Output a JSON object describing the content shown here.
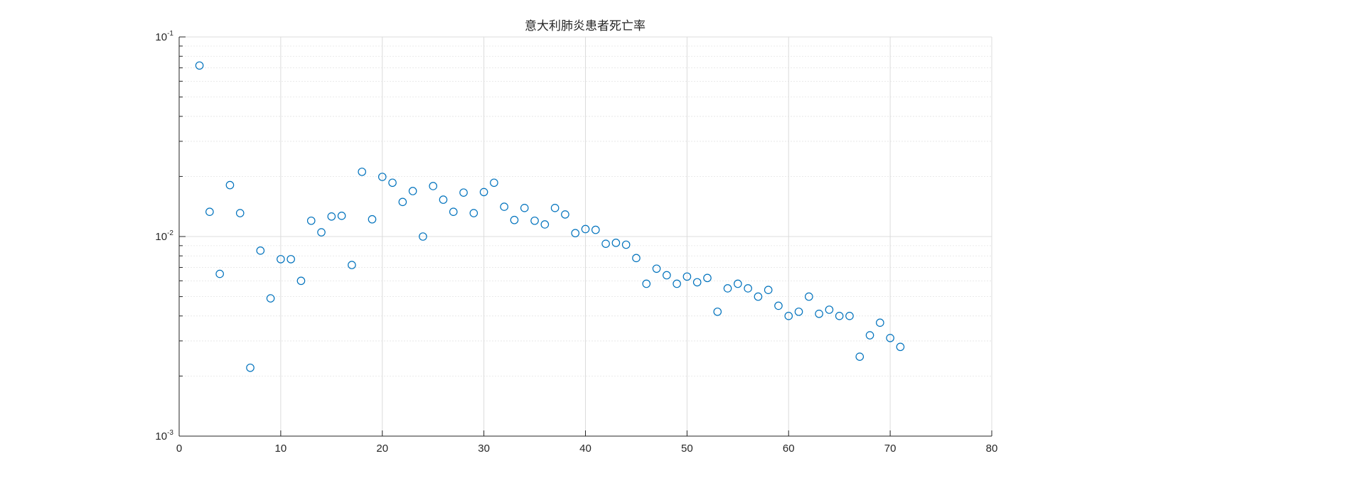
{
  "chart_data": {
    "type": "scatter",
    "title": "意大利肺炎患者死亡率",
    "xlabel": "",
    "ylabel": "",
    "xlim": [
      0,
      80
    ],
    "ylim": [
      0.001,
      0.1
    ],
    "yscale": "log",
    "grid": true,
    "minor_grid": true,
    "marker": "circle-open",
    "marker_color": "#0072BD",
    "x_ticks": [
      "0",
      "10",
      "20",
      "30",
      "40",
      "50",
      "60",
      "70",
      "80"
    ],
    "y_ticks": [
      {
        "base": "10",
        "exp": "-3",
        "value": 0.001
      },
      {
        "base": "10",
        "exp": "-2",
        "value": 0.01
      },
      {
        "base": "10",
        "exp": "-1",
        "value": 0.1
      }
    ],
    "series": [
      {
        "x": [
          2,
          3,
          4,
          5,
          6,
          7,
          8,
          9,
          10,
          11,
          12,
          13,
          14,
          15,
          16,
          17,
          18,
          19,
          20,
          21,
          22,
          23,
          24,
          25,
          26,
          27,
          28,
          29,
          30,
          31,
          32,
          33,
          34,
          35,
          36,
          37,
          38,
          39,
          40,
          41,
          42,
          43,
          44,
          45,
          46,
          47,
          48,
          49,
          50,
          51,
          52,
          53,
          54,
          55,
          56,
          57,
          58,
          59,
          60,
          61,
          62,
          63,
          64,
          65,
          66,
          67,
          68,
          69,
          70,
          71
        ],
        "y": [
          0.0719,
          0.0133,
          0.0065,
          0.0181,
          0.0131,
          0.0022,
          0.0085,
          0.0049,
          0.0077,
          0.0077,
          0.006,
          0.012,
          0.0105,
          0.0126,
          0.0127,
          0.0072,
          0.0211,
          0.0122,
          0.0199,
          0.0186,
          0.0149,
          0.0169,
          0.01,
          0.0179,
          0.0153,
          0.0133,
          0.0166,
          0.0131,
          0.0167,
          0.0186,
          0.0141,
          0.0121,
          0.0139,
          0.012,
          0.0115,
          0.0139,
          0.0129,
          0.0104,
          0.0109,
          0.0108,
          0.0092,
          0.0093,
          0.0091,
          0.0078,
          0.0058,
          0.0069,
          0.0064,
          0.0058,
          0.0063,
          0.0059,
          0.0062,
          0.0042,
          0.0055,
          0.0058,
          0.0055,
          0.005,
          0.0054,
          0.0045,
          0.004,
          0.0042,
          0.005,
          0.0041,
          0.0043,
          0.004,
          0.004,
          0.0025,
          0.0032,
          0.0037,
          0.0031,
          0.0028
        ]
      }
    ]
  }
}
